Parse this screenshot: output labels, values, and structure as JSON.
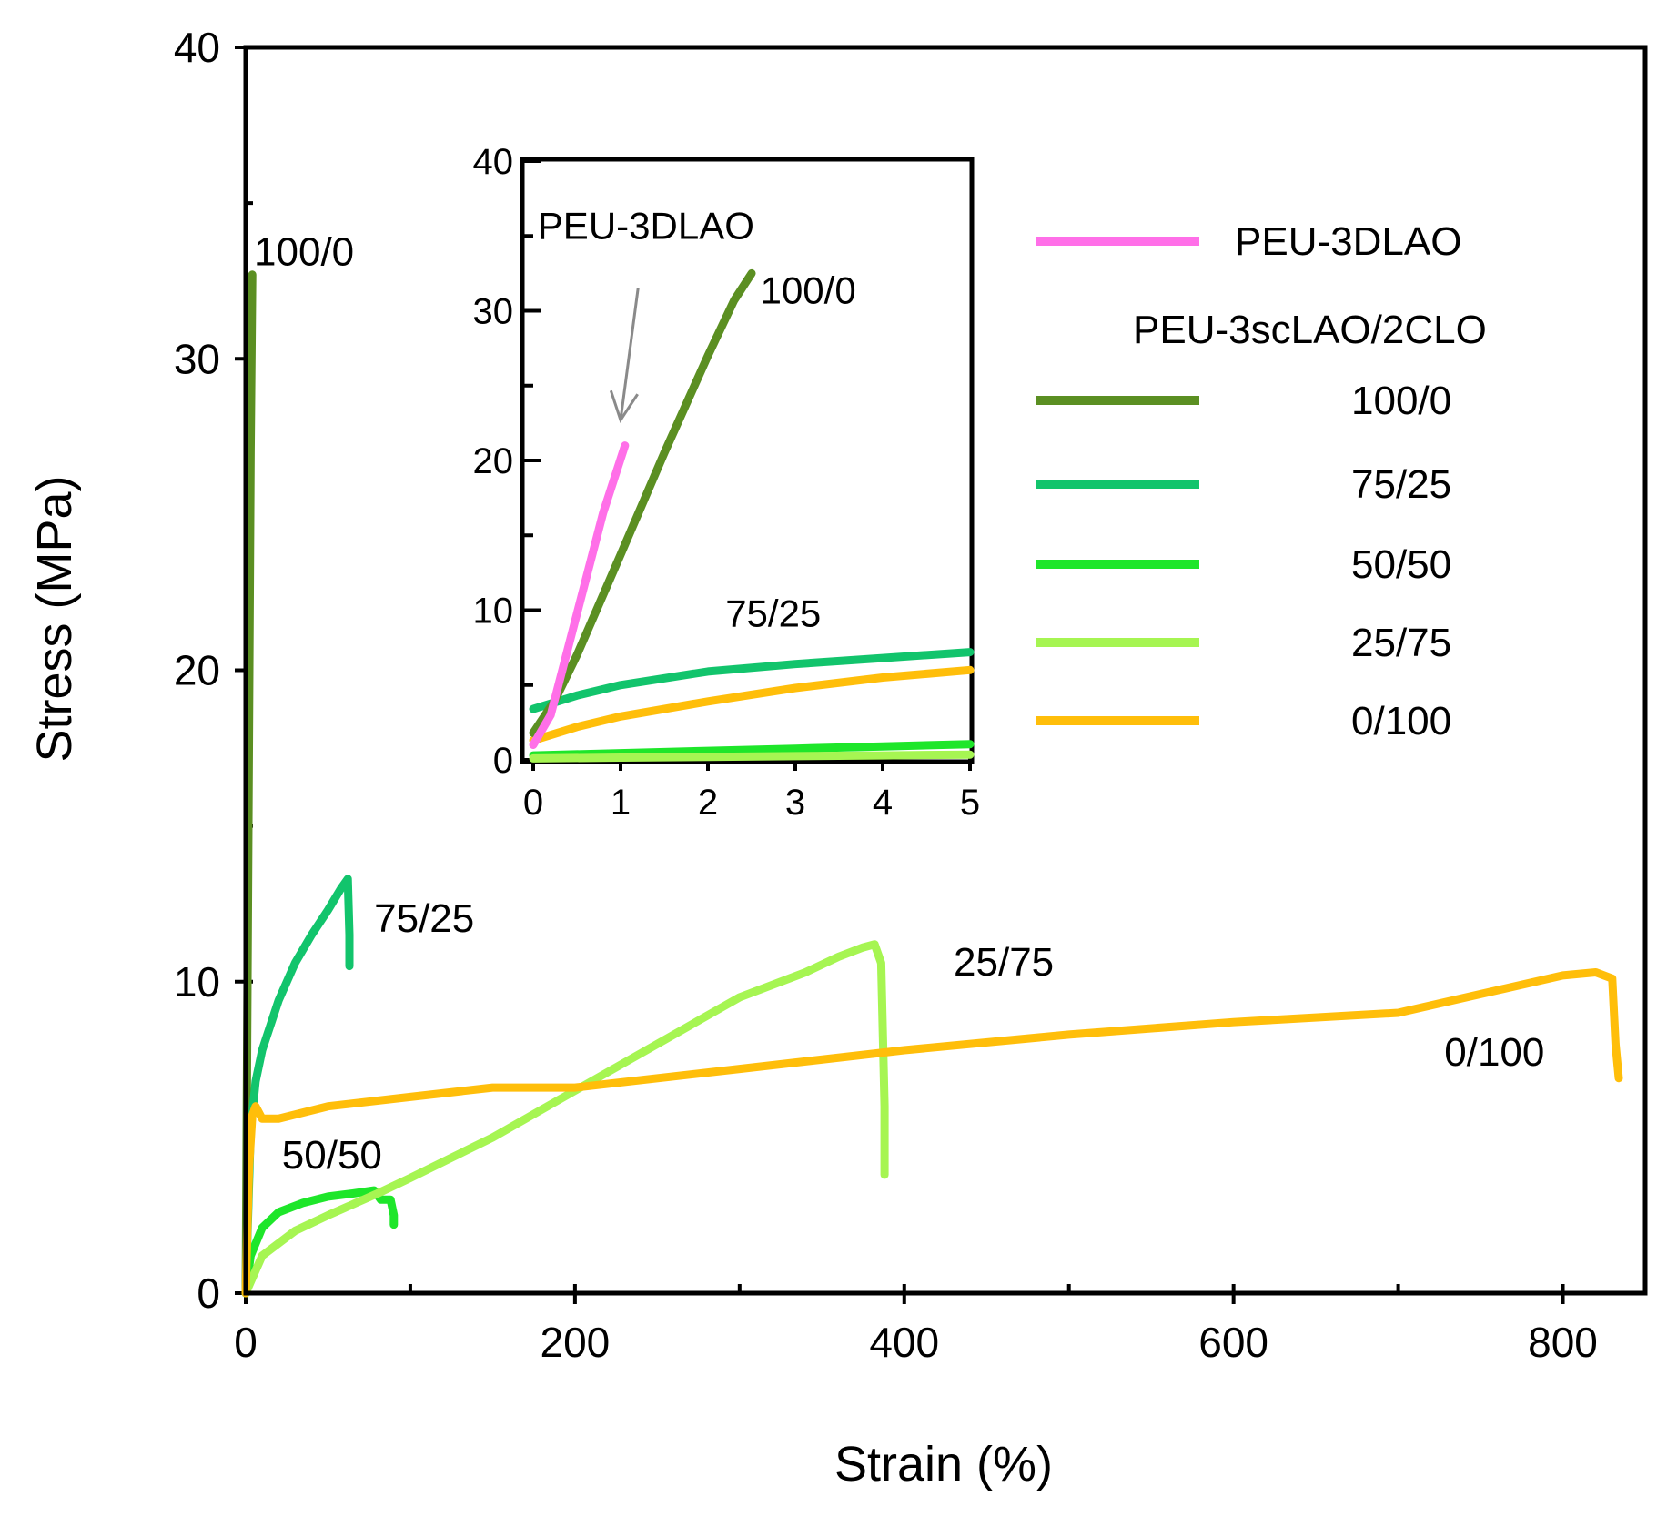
{
  "chart_data": [
    {
      "id": "main",
      "type": "line",
      "xlabel": "Strain (%)",
      "ylabel": "Stress (MPa)",
      "xlim": [
        0,
        850
      ],
      "ylim": [
        0,
        40
      ],
      "xticks": [
        0,
        200,
        400,
        600,
        800
      ],
      "yticks": [
        0,
        10,
        20,
        30,
        40
      ],
      "series": [
        {
          "key": "c100_0",
          "name": "100/0",
          "color": "#5B8F22",
          "x": [
            0,
            1,
            2,
            3,
            4
          ],
          "y": [
            0,
            9,
            18,
            27,
            32.7
          ]
        },
        {
          "key": "c75_25",
          "name": "75/25",
          "color": "#12C46C",
          "x": [
            0,
            3,
            6,
            10,
            20,
            30,
            40,
            50,
            58,
            62,
            63,
            63
          ],
          "y": [
            0,
            5.2,
            6.8,
            7.8,
            9.4,
            10.6,
            11.5,
            12.3,
            13.0,
            13.3,
            11.5,
            10.5
          ]
        },
        {
          "key": "c50_50",
          "name": "50/50",
          "color": "#1EE62A",
          "x": [
            0,
            3,
            10,
            20,
            35,
            50,
            65,
            78,
            82,
            88,
            90,
            90
          ],
          "y": [
            0,
            1.2,
            2.1,
            2.6,
            2.9,
            3.1,
            3.2,
            3.3,
            3.0,
            3.0,
            2.5,
            2.2
          ]
        },
        {
          "key": "c25_75",
          "name": "25/75",
          "color": "#A6F552",
          "x": [
            0,
            10,
            30,
            50,
            80,
            100,
            150,
            200,
            250,
            300,
            340,
            360,
            375,
            382,
            386,
            388,
            388
          ],
          "y": [
            0,
            1.2,
            2.0,
            2.5,
            3.2,
            3.7,
            5.0,
            6.5,
            8.0,
            9.5,
            10.3,
            10.8,
            11.1,
            11.2,
            10.6,
            6.0,
            3.8
          ]
        },
        {
          "key": "c0_100",
          "name": "0/100",
          "color": "#FFBE0A",
          "x": [
            0,
            2,
            4,
            6,
            10,
            20,
            50,
            100,
            150,
            200,
            300,
            400,
            500,
            600,
            700,
            750,
            800,
            820,
            830,
            832,
            834
          ],
          "y": [
            0,
            4.0,
            5.7,
            6.0,
            5.6,
            5.6,
            6.0,
            6.3,
            6.6,
            6.6,
            7.2,
            7.8,
            8.3,
            8.7,
            9.0,
            9.6,
            10.2,
            10.3,
            10.1,
            8.0,
            6.9
          ]
        }
      ],
      "annotations": [
        {
          "target": "c100_0",
          "text": "100/0",
          "x": 5,
          "y": 33.0
        },
        {
          "target": "c75_25",
          "text": "75/25",
          "x": 78,
          "y": 11.6
        },
        {
          "target": "c50_50",
          "text": "50/50",
          "x": 22,
          "y": 4.0
        },
        {
          "target": "c25_75",
          "text": "25/75",
          "x": 430,
          "y": 10.2
        },
        {
          "target": "c0_100",
          "text": "0/100",
          "x": 728,
          "y": 7.3
        }
      ]
    },
    {
      "id": "inset",
      "type": "line",
      "xlabel": "",
      "ylabel": "",
      "xlim": [
        0,
        5
      ],
      "ylim": [
        0,
        40
      ],
      "xticks": [
        0,
        1,
        2,
        3,
        4,
        5
      ],
      "yticks": [
        0,
        10,
        20,
        30,
        40
      ],
      "series": [
        {
          "key": "c0_100",
          "name": "0/100",
          "color": "#FFBE0A",
          "x": [
            0,
            0.5,
            1,
            2,
            3,
            4,
            5
          ],
          "y": [
            1.3,
            2.2,
            2.9,
            3.9,
            4.8,
            5.5,
            6.0
          ]
        },
        {
          "key": "c75_25",
          "name": "75/25",
          "color": "#12C46C",
          "x": [
            0,
            0.5,
            1,
            2,
            3,
            4,
            5
          ],
          "y": [
            3.4,
            4.3,
            5.0,
            5.9,
            6.4,
            6.8,
            7.2
          ]
        },
        {
          "key": "c50_50",
          "name": "50/50",
          "color": "#1EE62A",
          "x": [
            0,
            1,
            2,
            3,
            4,
            5
          ],
          "y": [
            0.3,
            0.45,
            0.6,
            0.75,
            0.9,
            1.05
          ]
        },
        {
          "key": "c25_75",
          "name": "25/75",
          "color": "#A6F552",
          "x": [
            0,
            1,
            2,
            3,
            4,
            5
          ],
          "y": [
            0.1,
            0.15,
            0.2,
            0.25,
            0.3,
            0.35
          ]
        },
        {
          "key": "c100_0",
          "name": "100/0",
          "color": "#5B8F22",
          "x": [
            0,
            0.25,
            0.5,
            1,
            1.5,
            2,
            2.3,
            2.5
          ],
          "y": [
            1.8,
            4.0,
            7.0,
            13.7,
            20.5,
            27.0,
            30.7,
            32.5
          ]
        },
        {
          "key": "dlao",
          "name": "PEU-3DLAO",
          "color": "#FF6FE8",
          "x": [
            0,
            0.2,
            0.4,
            0.6,
            0.8,
            1.05
          ],
          "y": [
            1.0,
            3.0,
            7.5,
            12.0,
            16.5,
            21.0
          ]
        }
      ],
      "annotations": [
        {
          "target": "c100_0",
          "text": "100/0",
          "x": 2.6,
          "y": 30.5
        },
        {
          "target": "c75_25",
          "text": "75/25",
          "x": 2.2,
          "y": 8.9
        },
        {
          "target": "dlao",
          "text": "PEU-3DLAO",
          "x": 0.05,
          "y": 34.8
        }
      ],
      "arrow": {
        "from": [
          1.2,
          31.5
        ],
        "to": [
          1.0,
          22.7
        ]
      }
    }
  ],
  "legend": {
    "position": "top-right",
    "items": [
      {
        "key": "dlao",
        "label": "PEU-3DLAO",
        "color": "#FF6FE8"
      },
      {
        "key": "heading",
        "label": "PEU-3scLAO/2CLO",
        "color": ""
      },
      {
        "key": "c100_0",
        "label": "100/0",
        "color": "#5B8F22"
      },
      {
        "key": "c75_25",
        "label": "75/25",
        "color": "#12C46C"
      },
      {
        "key": "c50_50",
        "label": "50/50",
        "color": "#1EE62A"
      },
      {
        "key": "c25_75",
        "label": "25/75",
        "color": "#A6F552"
      },
      {
        "key": "c0_100",
        "label": "0/100",
        "color": "#FFBE0A"
      }
    ]
  }
}
